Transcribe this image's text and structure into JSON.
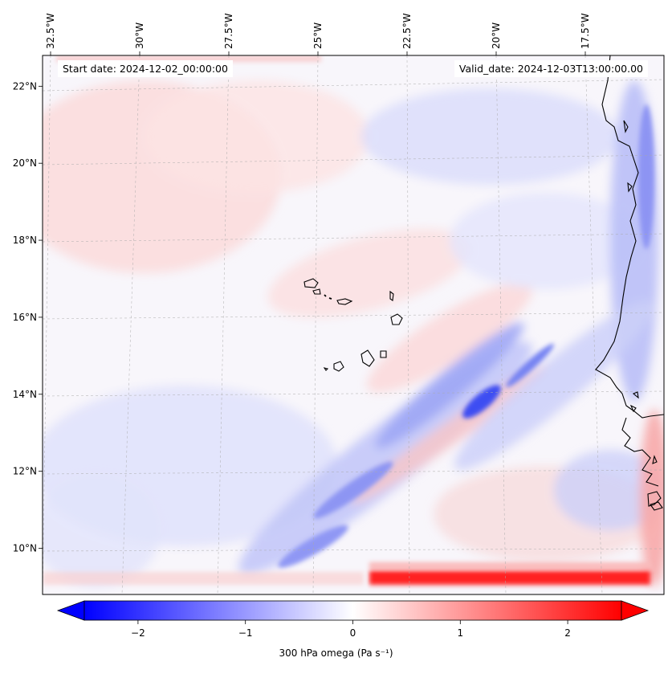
{
  "header": {
    "start_label": "Start date:",
    "start_value": "2024-12-02_00:00:00",
    "valid_label": "Valid_date:",
    "valid_value": "2024-12-03T13:00:00.00"
  },
  "map": {
    "projection": "lambert-conformal",
    "lon_range": [
      -32.7,
      -15.3
    ],
    "lat_range": [
      8.8,
      22.8
    ],
    "lon_ticks": [
      {
        "value": -32.5,
        "label": "32.5°W"
      },
      {
        "value": -30.0,
        "label": "30°W"
      },
      {
        "value": -27.5,
        "label": "27.5°W"
      },
      {
        "value": -25.0,
        "label": "25°W"
      },
      {
        "value": -22.5,
        "label": "22.5°W"
      },
      {
        "value": -20.0,
        "label": "20°W"
      },
      {
        "value": -17.5,
        "label": "17.5°W"
      }
    ],
    "lat_ticks": [
      {
        "value": 10,
        "label": "10°N"
      },
      {
        "value": 12,
        "label": "12°N"
      },
      {
        "value": 14,
        "label": "14°N"
      },
      {
        "value": 16,
        "label": "16°N"
      },
      {
        "value": 18,
        "label": "18°N"
      },
      {
        "value": 20,
        "label": "20°N"
      },
      {
        "value": 22,
        "label": "22°N"
      }
    ],
    "features": [
      "Cape Verde islands",
      "West African coastline (Mauritania, Senegal, Guinea-Bissau)"
    ]
  },
  "colorbar": {
    "label": "300 hPa omega (Pa s⁻¹)",
    "vmin": -2.5,
    "vmax": 2.5,
    "colormap": "bwr",
    "extend": "both",
    "ticks": [
      {
        "value": -2,
        "label": "−2"
      },
      {
        "value": -1,
        "label": "−1"
      },
      {
        "value": 0,
        "label": "0"
      },
      {
        "value": 1,
        "label": "1"
      },
      {
        "value": 2,
        "label": "2"
      }
    ]
  },
  "colors": {
    "negative": "#0000ff",
    "neutral": "#ffffff",
    "positive": "#ff0000",
    "coast": "#000000"
  }
}
